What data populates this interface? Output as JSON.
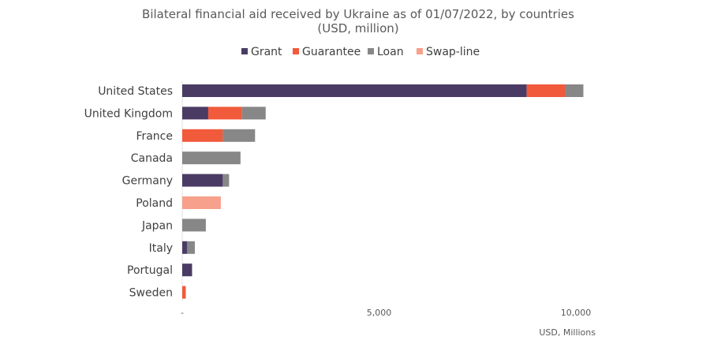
{
  "chart_data": {
    "type": "bar",
    "orientation": "horizontal",
    "stacked": true,
    "title_line1": "Bilateral financial aid received by Ukraine as of 01/07/2022, by countries",
    "title_line2": "(USD, million)",
    "xlabel": "USD, Millions",
    "ylabel": "",
    "xlim": [
      0,
      12500
    ],
    "x_ticks": [
      {
        "value": 0,
        "label": "-"
      },
      {
        "value": 5000,
        "label": "5,000"
      },
      {
        "value": 10000,
        "label": "10,000"
      }
    ],
    "grid": false,
    "legend_position": "top-center",
    "categories": [
      "United States",
      "United Kingdom",
      "France",
      "Canada",
      "Germany",
      "Poland",
      "Japan",
      "Italy",
      "Portugal",
      "Sweden"
    ],
    "series": [
      {
        "name": "Grant",
        "color": "#4a3b64",
        "values": [
          8750,
          660,
          0,
          0,
          1030,
          0,
          0,
          120,
          250,
          0
        ]
      },
      {
        "name": "Guarantee",
        "color": "#f15a3b",
        "values": [
          970,
          860,
          1030,
          0,
          0,
          0,
          0,
          0,
          0,
          90
        ]
      },
      {
        "name": "Loan",
        "color": "#878787",
        "values": [
          470,
          600,
          820,
          1480,
          160,
          0,
          600,
          200,
          0,
          0
        ]
      },
      {
        "name": "Swap-line",
        "color": "#f7a08b",
        "values": [
          0,
          0,
          0,
          0,
          0,
          980,
          0,
          0,
          0,
          0
        ]
      }
    ]
  }
}
